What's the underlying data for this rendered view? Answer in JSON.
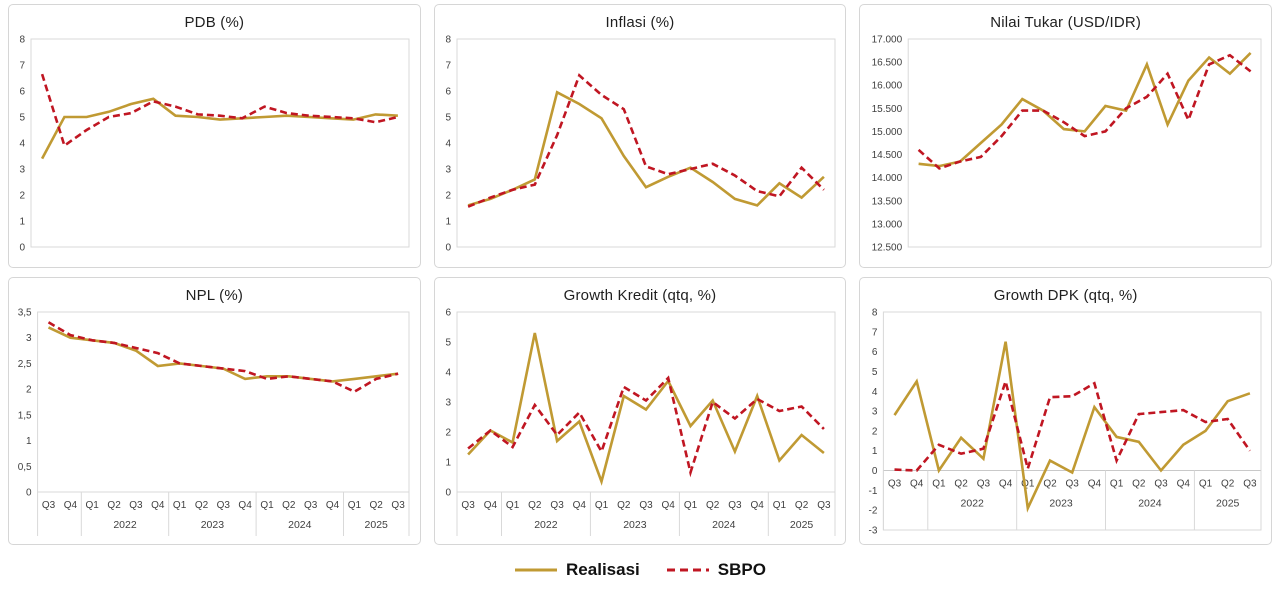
{
  "legend": {
    "items": [
      {
        "label": "Realisasi",
        "color_key": "realisasi",
        "dash": false
      },
      {
        "label": "SBPO",
        "color_key": "sbpo",
        "dash": true
      }
    ]
  },
  "colors": {
    "realisasi": "#C09A33",
    "sbpo": "#C01622",
    "grid": "#d9d9d9",
    "axis": "#c9c9c9",
    "tick_text": "#3f3f3f"
  },
  "x_axis": {
    "quarters": [
      "Q3",
      "Q4",
      "Q1",
      "Q2",
      "Q3",
      "Q4",
      "Q1",
      "Q2",
      "Q3",
      "Q4",
      "Q1",
      "Q2",
      "Q3",
      "Q4",
      "Q1",
      "Q2",
      "Q3"
    ],
    "year_groups": [
      {
        "label": "",
        "start": 0,
        "end": 1
      },
      {
        "label": "2022",
        "start": 2,
        "end": 5
      },
      {
        "label": "2023",
        "start": 6,
        "end": 9
      },
      {
        "label": "2024",
        "start": 10,
        "end": 13
      },
      {
        "label": "2025",
        "start": 14,
        "end": 16
      }
    ]
  },
  "chart_data": [
    {
      "id": "pdb",
      "type": "line",
      "title": "PDB (%)",
      "ylim": [
        0,
        8
      ],
      "x_label_mode": "none",
      "yticks": [
        {
          "v": 0,
          "label": "0"
        },
        {
          "v": 1,
          "label": "1"
        },
        {
          "v": 2,
          "label": "2"
        },
        {
          "v": 3,
          "label": "3"
        },
        {
          "v": 4,
          "label": "4"
        },
        {
          "v": 5,
          "label": "5"
        },
        {
          "v": 6,
          "label": "6"
        },
        {
          "v": 7,
          "label": "7"
        },
        {
          "v": 8,
          "label": "8"
        }
      ],
      "series": [
        {
          "name": "Realisasi",
          "color_key": "realisasi",
          "dash": false,
          "values": [
            3.4,
            5.0,
            5.0,
            5.2,
            5.5,
            5.7,
            5.05,
            5.0,
            4.9,
            4.95,
            5.0,
            5.05,
            5.0,
            4.95,
            4.9,
            5.1,
            5.05
          ]
        },
        {
          "name": "SBPO",
          "color_key": "sbpo",
          "dash": true,
          "values": [
            6.65,
            3.9,
            4.5,
            5.0,
            5.15,
            5.6,
            5.4,
            5.1,
            5.05,
            4.95,
            5.4,
            5.15,
            5.05,
            5.0,
            4.95,
            4.8,
            5.0
          ]
        }
      ]
    },
    {
      "id": "inflasi",
      "type": "line",
      "title": "Inflasi (%)",
      "ylim": [
        0,
        8
      ],
      "x_label_mode": "none",
      "yticks": [
        {
          "v": 0,
          "label": "0"
        },
        {
          "v": 1,
          "label": "1"
        },
        {
          "v": 2,
          "label": "2"
        },
        {
          "v": 3,
          "label": "3"
        },
        {
          "v": 4,
          "label": "4"
        },
        {
          "v": 5,
          "label": "5"
        },
        {
          "v": 6,
          "label": "6"
        },
        {
          "v": 7,
          "label": "7"
        },
        {
          "v": 8,
          "label": "8"
        }
      ],
      "series": [
        {
          "name": "Realisasi",
          "color_key": "realisasi",
          "dash": false,
          "values": [
            1.6,
            1.85,
            2.2,
            2.6,
            5.95,
            5.5,
            4.95,
            3.5,
            2.3,
            2.7,
            3.05,
            2.5,
            1.85,
            1.6,
            2.45,
            1.9,
            2.7
          ]
        },
        {
          "name": "SBPO",
          "color_key": "sbpo",
          "dash": true,
          "values": [
            1.55,
            1.9,
            2.2,
            2.4,
            4.3,
            6.6,
            5.85,
            5.3,
            3.1,
            2.8,
            3.0,
            3.2,
            2.75,
            2.15,
            1.95,
            3.05,
            2.2
          ]
        }
      ]
    },
    {
      "id": "nilai-tukar",
      "type": "line",
      "title": "Nilai Tukar (USD/IDR)",
      "ylim": [
        12500,
        17000
      ],
      "x_label_mode": "none",
      "yticks": [
        {
          "v": 12500,
          "label": "12.500"
        },
        {
          "v": 13000,
          "label": "13.000"
        },
        {
          "v": 13500,
          "label": "13.500"
        },
        {
          "v": 14000,
          "label": "14.000"
        },
        {
          "v": 14500,
          "label": "14.500"
        },
        {
          "v": 15000,
          "label": "15.000"
        },
        {
          "v": 15500,
          "label": "15.500"
        },
        {
          "v": 16000,
          "label": "16.000"
        },
        {
          "v": 16500,
          "label": "16.500"
        },
        {
          "v": 17000,
          "label": "17.000"
        }
      ],
      "series": [
        {
          "name": "Realisasi",
          "color_key": "realisasi",
          "dash": false,
          "values": [
            14300,
            14250,
            14350,
            14750,
            15150,
            15700,
            15450,
            15050,
            15000,
            15550,
            15450,
            16450,
            15150,
            16100,
            16600,
            16250,
            16700
          ]
        },
        {
          "name": "SBPO",
          "color_key": "sbpo",
          "dash": true,
          "values": [
            14600,
            14200,
            14350,
            14450,
            14900,
            15450,
            15450,
            15200,
            14900,
            15000,
            15500,
            15750,
            16250,
            15250,
            16450,
            16650,
            16300
          ]
        }
      ]
    },
    {
      "id": "npl",
      "type": "line",
      "title": "NPL (%)",
      "ylim": [
        0,
        3.5
      ],
      "x_label_mode": "below",
      "yticks": [
        {
          "v": 0,
          "label": "0"
        },
        {
          "v": 0.5,
          "label": "0,5"
        },
        {
          "v": 1,
          "label": "1"
        },
        {
          "v": 1.5,
          "label": "1,5"
        },
        {
          "v": 2,
          "label": "2"
        },
        {
          "v": 2.5,
          "label": "2,5"
        },
        {
          "v": 3,
          "label": "3"
        },
        {
          "v": 3.5,
          "label": "3,5"
        }
      ],
      "series": [
        {
          "name": "Realisasi",
          "color_key": "realisasi",
          "dash": false,
          "values": [
            3.2,
            3.0,
            2.95,
            2.9,
            2.75,
            2.45,
            2.5,
            2.45,
            2.4,
            2.2,
            2.25,
            2.25,
            2.2,
            2.15,
            2.2,
            2.25,
            2.3
          ]
        },
        {
          "name": "SBPO",
          "color_key": "sbpo",
          "dash": true,
          "values": [
            3.3,
            3.05,
            2.95,
            2.9,
            2.8,
            2.7,
            2.5,
            2.45,
            2.4,
            2.35,
            2.2,
            2.25,
            2.2,
            2.15,
            1.95,
            2.2,
            2.3
          ]
        }
      ]
    },
    {
      "id": "growth-kredit",
      "type": "line",
      "title": "Growth Kredit (qtq, %)",
      "ylim": [
        0,
        6
      ],
      "x_label_mode": "below",
      "yticks": [
        {
          "v": 0,
          "label": "0"
        },
        {
          "v": 1,
          "label": "1"
        },
        {
          "v": 2,
          "label": "2"
        },
        {
          "v": 3,
          "label": "3"
        },
        {
          "v": 4,
          "label": "4"
        },
        {
          "v": 5,
          "label": "5"
        },
        {
          "v": 6,
          "label": "6"
        }
      ],
      "series": [
        {
          "name": "Realisasi",
          "color_key": "realisasi",
          "dash": false,
          "values": [
            1.25,
            2.05,
            1.65,
            5.3,
            1.7,
            2.35,
            0.35,
            3.2,
            2.75,
            3.7,
            2.2,
            3.05,
            1.35,
            3.2,
            1.05,
            1.9,
            1.3
          ]
        },
        {
          "name": "SBPO",
          "color_key": "sbpo",
          "dash": true,
          "values": [
            1.45,
            2.05,
            1.5,
            2.9,
            1.9,
            2.65,
            1.35,
            3.5,
            3.05,
            3.8,
            0.65,
            3.0,
            2.45,
            3.1,
            2.7,
            2.85,
            2.1
          ]
        }
      ]
    },
    {
      "id": "growth-dpk",
      "type": "line",
      "title": "Growth DPK (qtq, %)",
      "ylim": [
        -3,
        8
      ],
      "x_label_mode": "at_zero",
      "yticks": [
        {
          "v": -3,
          "label": "-3"
        },
        {
          "v": -2,
          "label": "-2"
        },
        {
          "v": -1,
          "label": "-1"
        },
        {
          "v": 0,
          "label": "0"
        },
        {
          "v": 1,
          "label": "1"
        },
        {
          "v": 2,
          "label": "2"
        },
        {
          "v": 3,
          "label": "3"
        },
        {
          "v": 4,
          "label": "4"
        },
        {
          "v": 5,
          "label": "5"
        },
        {
          "v": 6,
          "label": "6"
        },
        {
          "v": 7,
          "label": "7"
        },
        {
          "v": 8,
          "label": "8"
        }
      ],
      "series": [
        {
          "name": "Realisasi",
          "color_key": "realisasi",
          "dash": false,
          "values": [
            2.8,
            4.5,
            0.0,
            1.65,
            0.6,
            6.5,
            -1.9,
            0.5,
            -0.1,
            3.2,
            1.7,
            1.45,
            0.0,
            1.3,
            2.0,
            3.5,
            3.9
          ]
        },
        {
          "name": "SBPO",
          "color_key": "sbpo",
          "dash": true,
          "values": [
            0.05,
            0.0,
            1.3,
            0.85,
            1.1,
            4.5,
            0.1,
            3.7,
            3.75,
            4.4,
            0.5,
            2.85,
            2.95,
            3.05,
            2.45,
            2.6,
            1.0
          ]
        }
      ]
    }
  ]
}
